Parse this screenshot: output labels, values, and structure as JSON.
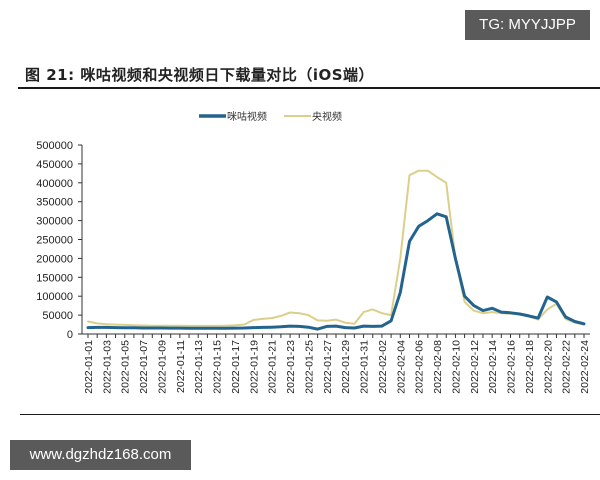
{
  "watermarks": {
    "top": "TG: MYYJJPP",
    "bottom": "www.dgzhdz168.com"
  },
  "figure": {
    "title": "图 21: 咪咕视频和央视频日下载量对比（iOS端）"
  },
  "colors": {
    "migu": "#23648f",
    "cctv": "#dccf8a",
    "axis": "#333333"
  },
  "chart_data": {
    "type": "line",
    "title": "图 21: 咪咕视频和央视频日下载量对比（iOS端）",
    "xlabel": "",
    "ylabel": "",
    "ylim": [
      0,
      500000
    ],
    "yticks": [
      0,
      50000,
      100000,
      150000,
      200000,
      250000,
      300000,
      350000,
      400000,
      450000,
      500000
    ],
    "grid": false,
    "legend_position": "top",
    "x": [
      "2022-01-01",
      "2022-01-02",
      "2022-01-03",
      "2022-01-04",
      "2022-01-05",
      "2022-01-06",
      "2022-01-07",
      "2022-01-08",
      "2022-01-09",
      "2022-01-10",
      "2022-01-11",
      "2022-01-12",
      "2022-01-13",
      "2022-01-14",
      "2022-01-15",
      "2022-01-16",
      "2022-01-17",
      "2022-01-18",
      "2022-01-19",
      "2022-01-20",
      "2022-01-21",
      "2022-01-22",
      "2022-01-23",
      "2022-01-24",
      "2022-01-25",
      "2022-01-26",
      "2022-01-27",
      "2022-01-28",
      "2022-01-29",
      "2022-01-30",
      "2022-01-31",
      "2022-02-01",
      "2022-02-02",
      "2022-02-03",
      "2022-02-04",
      "2022-02-05",
      "2022-02-06",
      "2022-02-07",
      "2022-02-08",
      "2022-02-09",
      "2022-02-10",
      "2022-02-11",
      "2022-02-12",
      "2022-02-13",
      "2022-02-14",
      "2022-02-15",
      "2022-02-16",
      "2022-02-17",
      "2022-02-18",
      "2022-02-19",
      "2022-02-20",
      "2022-02-21",
      "2022-02-22",
      "2022-02-23",
      "2022-02-24"
    ],
    "xtick_labels": [
      "2022-01-01",
      "2022-01-03",
      "2022-01-05",
      "2022-01-07",
      "2022-01-09",
      "2022-01-11",
      "2022-01-13",
      "2022-01-15",
      "2022-01-17",
      "2022-01-19",
      "2022-01-21",
      "2022-01-23",
      "2022-01-25",
      "2022-01-27",
      "2022-01-29",
      "2022-01-31",
      "2022-02-02",
      "2022-02-04",
      "2022-02-06",
      "2022-02-08",
      "2022-02-10",
      "2022-02-12",
      "2022-02-14",
      "2022-02-16",
      "2022-02-18",
      "2022-02-20",
      "2022-02-22",
      "2022-02-24"
    ],
    "series": [
      {
        "name": "咪咕视频",
        "color": "#23648f",
        "values": [
          17000,
          17500,
          17500,
          17000,
          16500,
          16500,
          16000,
          16000,
          16000,
          15500,
          15500,
          15000,
          15000,
          15000,
          15000,
          15000,
          15500,
          16000,
          17000,
          17500,
          18000,
          19000,
          21000,
          20000,
          18000,
          13000,
          20000,
          21000,
          17000,
          16000,
          21000,
          20000,
          21000,
          35000,
          110000,
          245000,
          285000,
          300000,
          318000,
          310000,
          200000,
          100000,
          75000,
          62000,
          68000,
          58000,
          56000,
          53000,
          48000,
          42000,
          98000,
          85000,
          45000,
          33000,
          27000
        ]
      },
      {
        "name": "央视频",
        "color": "#dccf8a",
        "values": [
          33000,
          28000,
          26000,
          25000,
          24000,
          23000,
          22500,
          22000,
          22000,
          22000,
          22000,
          21500,
          21500,
          21500,
          21500,
          22000,
          23000,
          25000,
          37000,
          40000,
          42000,
          48000,
          57000,
          55000,
          50000,
          36000,
          35000,
          38000,
          30000,
          27000,
          58000,
          65000,
          55000,
          50000,
          200000,
          420000,
          432000,
          432000,
          415000,
          400000,
          200000,
          85000,
          62000,
          55000,
          58000,
          55000,
          54000,
          52000,
          46000,
          38000,
          65000,
          80000,
          40000,
          30000,
          25000
        ]
      }
    ]
  }
}
